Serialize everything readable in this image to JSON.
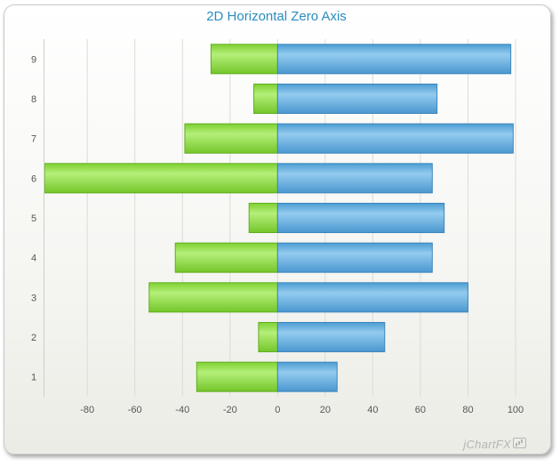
{
  "chart_data": {
    "type": "bar",
    "orientation": "horizontal",
    "title": "2D Horizontal Zero Axis",
    "categories": [
      "1",
      "2",
      "3",
      "4",
      "5",
      "6",
      "7",
      "8",
      "9"
    ],
    "series": [
      {
        "color": "#8ed93e",
        "values": [
          -34,
          -8,
          -54,
          -43,
          -12,
          -98,
          -39,
          -10,
          -28
        ]
      },
      {
        "color": "#5aa9dc",
        "values": [
          25,
          45,
          80,
          65,
          70,
          65,
          99,
          67,
          98
        ]
      }
    ],
    "xlim": [
      -98,
      100
    ],
    "xticks": [
      -80,
      -60,
      -40,
      -20,
      0,
      20,
      40,
      60,
      80,
      100
    ],
    "grid": "vertical",
    "legend": "none"
  },
  "watermark": "jChartFX"
}
